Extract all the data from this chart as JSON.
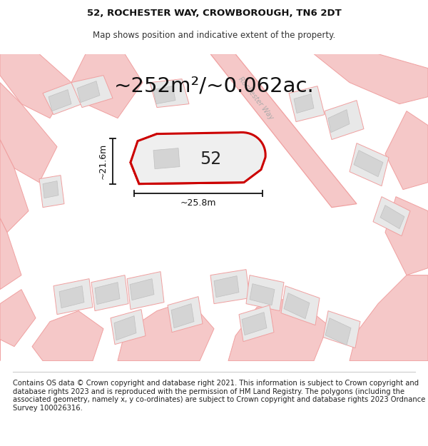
{
  "title_line1": "52, ROCHESTER WAY, CROWBOROUGH, TN6 2DT",
  "title_line2": "Map shows position and indicative extent of the property.",
  "area_text": "~252m²/~0.062ac.",
  "label_52": "52",
  "dim_width": "~25.8m",
  "dim_height": "~21.6m",
  "road_label": "Rochester Way",
  "footer_text": "Contains OS data © Crown copyright and database right 2021. This information is subject to Crown copyright and database rights 2023 and is reproduced with the permission of HM Land Registry. The polygons (including the associated geometry, namely x, y co-ordinates) are subject to Crown copyright and database rights 2023 Ordnance Survey 100026316.",
  "bg_color": "#f2f2f2",
  "road_color": "#f0a0a0",
  "road_fill": "#f5c8c8",
  "plot_fill": "#e8e8e8",
  "building_fill": "#d4d4d4",
  "highlight_color": "#cc0000",
  "white": "#ffffff",
  "title_fontsize": 9.5,
  "subtitle_fontsize": 8.5,
  "area_fontsize": 21,
  "dim_fontsize": 9,
  "label_fontsize": 17,
  "road_label_fontsize": 7,
  "footer_fontsize": 7.2
}
